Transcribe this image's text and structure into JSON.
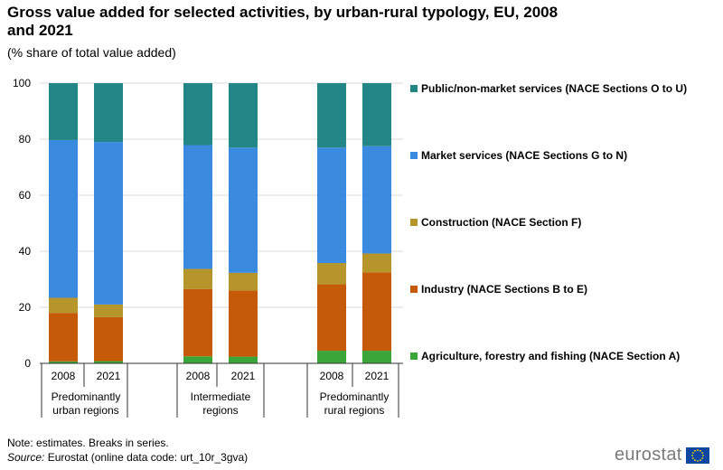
{
  "chart_data": {
    "type": "bar",
    "stacked": true,
    "title": "Gross value added for selected activities, by urban-rural typology, EU, 2008 and 2021",
    "subtitle": "(% share of total value added)",
    "ylim": [
      0,
      100
    ],
    "yticks": [
      0,
      20,
      40,
      60,
      80,
      100
    ],
    "categories": [
      "2008",
      "2021",
      "2008",
      "2021",
      "2008",
      "2021"
    ],
    "groups": [
      {
        "label_line1": "Predominantly",
        "label_line2": "urban regions"
      },
      {
        "label_line1": "Intermediate",
        "label_line2": "regions"
      },
      {
        "label_line1": "Predominantly",
        "label_line2": "rural regions"
      }
    ],
    "series": [
      {
        "name": "Agriculture, forestry and fishing (NACE Section A)",
        "color": "#3aa63a",
        "values": [
          0.7,
          0.8,
          2.5,
          2.4,
          4.5,
          4.5
        ]
      },
      {
        "name": "Industry (NACE Sections B to E)",
        "color": "#c55a08",
        "values": [
          17.3,
          15.7,
          24.0,
          23.6,
          23.7,
          28.0
        ]
      },
      {
        "name": "Construction (NACE Section F)",
        "color": "#b6952b",
        "values": [
          5.4,
          4.5,
          7.2,
          6.3,
          7.6,
          6.7
        ]
      },
      {
        "name": "Market services (NACE Sections G to N)",
        "color": "#3a8be0",
        "values": [
          56.3,
          58.0,
          44.2,
          44.7,
          41.2,
          38.3
        ]
      },
      {
        "name": "Public/non-market services (NACE Sections O to U)",
        "color": "#228687",
        "values": [
          20.3,
          21.0,
          22.1,
          23.0,
          23.0,
          22.5
        ]
      }
    ]
  },
  "footer": {
    "note": "Note: estimates. Breaks in series.",
    "source_label": "Source:",
    "source_text": " Eurostat (online data code: urt_10r_3gva)",
    "logo_text": "eurostat"
  },
  "colors": {
    "grid": "#d9d9d9",
    "axis": "#333333",
    "eu_flag": "#0d47a1",
    "eu_stars": "#ffdd00"
  }
}
